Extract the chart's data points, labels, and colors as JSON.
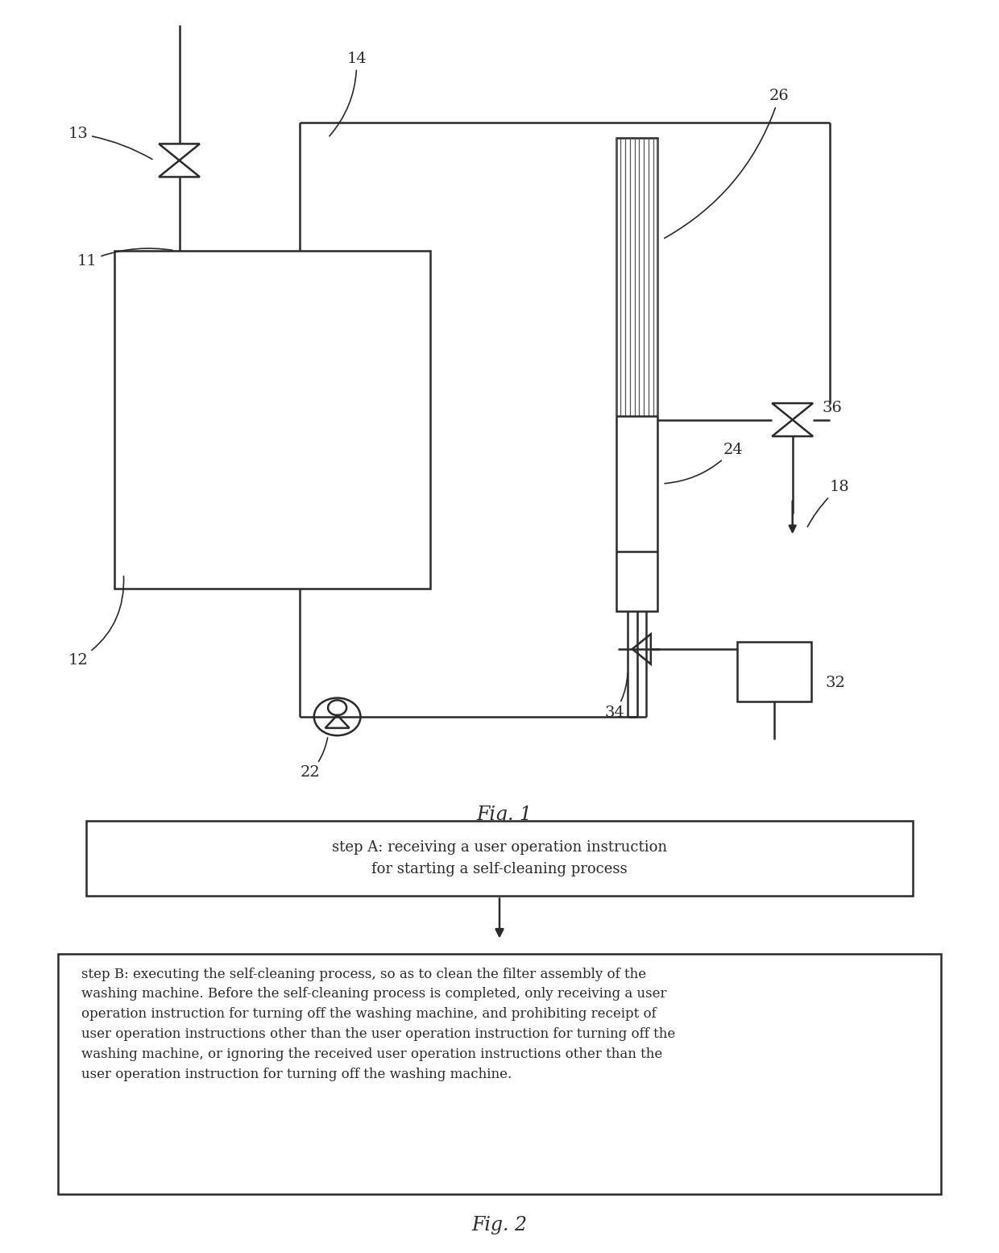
{
  "bg_color": "#ffffff",
  "line_color": "#2a2a2a",
  "fig1_label": "Fig. 1",
  "fig2_label": "Fig. 2",
  "step_a_text": "step A: receiving a user operation instruction\nfor starting a self-cleaning process",
  "step_b_line1": "step B: executing the self-cleaning process, so as to clean the filter assembly of the",
  "step_b_line2": "washing machine. Before the self-cleaning process is completed, only receiving a user",
  "step_b_line3": "operation instruction for turning off the washing machine, and prohibiting receipt of",
  "step_b_line4": "user operation instructions other than the user operation instruction for turning off the",
  "step_b_line5": "washing machine, or ignoring the received user operation instructions other than the",
  "step_b_line6": "user operation instruction for turning off the washing machine."
}
